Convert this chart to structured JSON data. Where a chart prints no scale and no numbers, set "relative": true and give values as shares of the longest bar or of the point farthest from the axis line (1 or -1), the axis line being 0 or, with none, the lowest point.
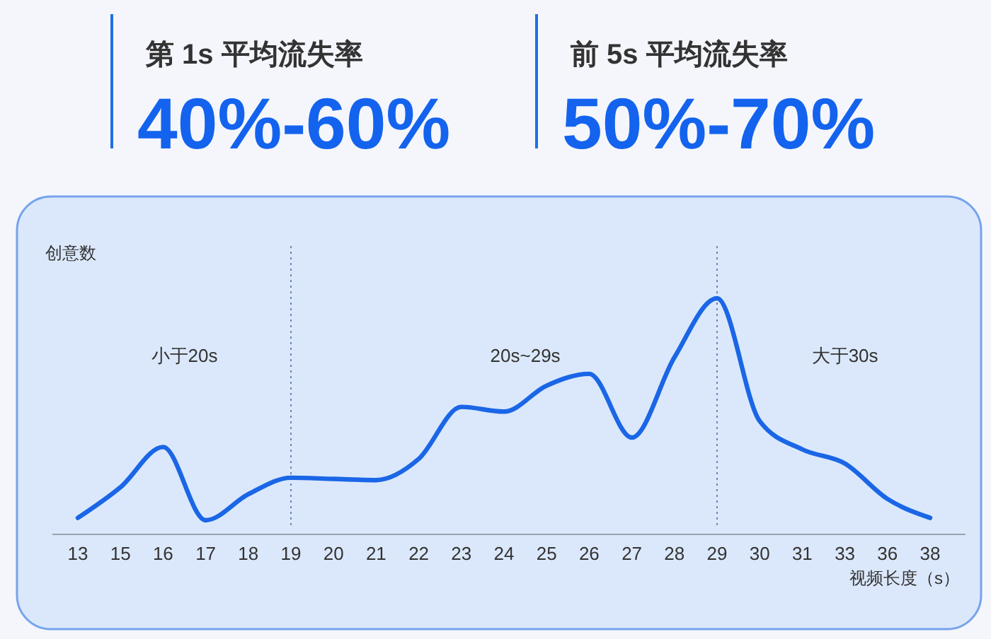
{
  "chart_data": [
    {
      "type": "other",
      "title": "第 1s 平均流失率",
      "annotations": [
        "40%-60%"
      ]
    },
    {
      "type": "other",
      "title": "前 5s 平均流失率",
      "annotations": [
        "50%-70%"
      ]
    },
    {
      "type": "line",
      "ylabel": "创意数",
      "xlabel": "视频长度（s）",
      "relative": true,
      "color": "#1a66e6",
      "categories": [
        "13",
        "15",
        "16",
        "17",
        "18",
        "19",
        "20",
        "21",
        "22",
        "23",
        "24",
        "25",
        "26",
        "27",
        "28",
        "29",
        "30",
        "31",
        "33",
        "36",
        "38"
      ],
      "values": [
        0.07,
        0.2,
        0.37,
        0.06,
        0.17,
        0.24,
        0.235,
        0.23,
        0.32,
        0.54,
        0.52,
        0.63,
        0.68,
        0.41,
        0.75,
        1,
        0.48,
        0.36,
        0.3,
        0.15,
        0.07
      ],
      "ref_lines": [
        {
          "axis": "x",
          "value": "19",
          "line_style": "dotted",
          "color": "#6b86b5"
        },
        {
          "axis": "x",
          "value": "29",
          "line_style": "dotted",
          "color": "#6b86b5"
        }
      ],
      "annotations": [
        "小于20s",
        "20s~29s",
        "大于30s"
      ]
    }
  ]
}
